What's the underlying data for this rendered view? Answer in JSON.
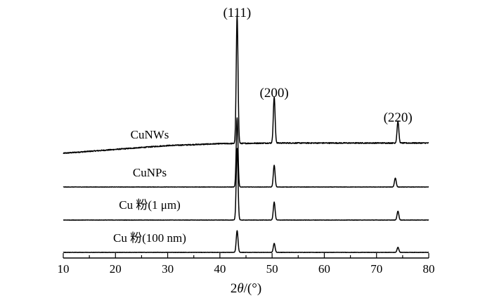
{
  "chart_data": {
    "type": "line",
    "xlabel": {
      "prefix": "2",
      "italic": "θ",
      "suffix": "/(°)"
    },
    "ylabel": "",
    "xlim": [
      10,
      80
    ],
    "xticks": [
      10,
      20,
      30,
      40,
      50,
      60,
      70,
      80
    ],
    "grid": false,
    "legend": "none",
    "peak_labels": [
      {
        "text": "(111)",
        "x": 43.3
      },
      {
        "text": "(200)",
        "x": 50.4
      },
      {
        "text": "(220)",
        "x": 74.1
      }
    ],
    "series": [
      {
        "name": "CuNWs",
        "baseline": [
          [
            10,
            0.0
          ],
          [
            20,
            0.03
          ],
          [
            30,
            0.06
          ],
          [
            40,
            0.075
          ],
          [
            50,
            0.08
          ],
          [
            60,
            0.08
          ],
          [
            70,
            0.08
          ],
          [
            80,
            0.08
          ]
        ],
        "peaks": [
          {
            "x": 43.3,
            "height": 1.0
          },
          {
            "x": 50.4,
            "height": 0.36
          },
          {
            "x": 74.1,
            "height": 0.17
          }
        ]
      },
      {
        "name": "CuNPs",
        "baseline": [
          [
            10,
            0.0
          ],
          [
            80,
            0.0
          ]
        ],
        "peaks": [
          {
            "x": 43.3,
            "height": 0.54
          },
          {
            "x": 50.4,
            "height": 0.17
          },
          {
            "x": 73.6,
            "height": 0.07
          }
        ]
      },
      {
        "name": "Cu 粉(1 μm)",
        "baseline": [
          [
            10,
            0.0
          ],
          [
            80,
            0.0
          ]
        ],
        "peaks": [
          {
            "x": 43.3,
            "height": 0.56
          },
          {
            "x": 50.4,
            "height": 0.14
          },
          {
            "x": 74.1,
            "height": 0.07
          }
        ]
      },
      {
        "name": "Cu 粉(100 nm)",
        "baseline": [
          [
            10,
            0.0
          ],
          [
            80,
            0.0
          ]
        ],
        "peaks": [
          {
            "x": 43.3,
            "height": 0.17
          },
          {
            "x": 50.4,
            "height": 0.07
          },
          {
            "x": 74.1,
            "height": 0.04
          }
        ]
      }
    ]
  }
}
